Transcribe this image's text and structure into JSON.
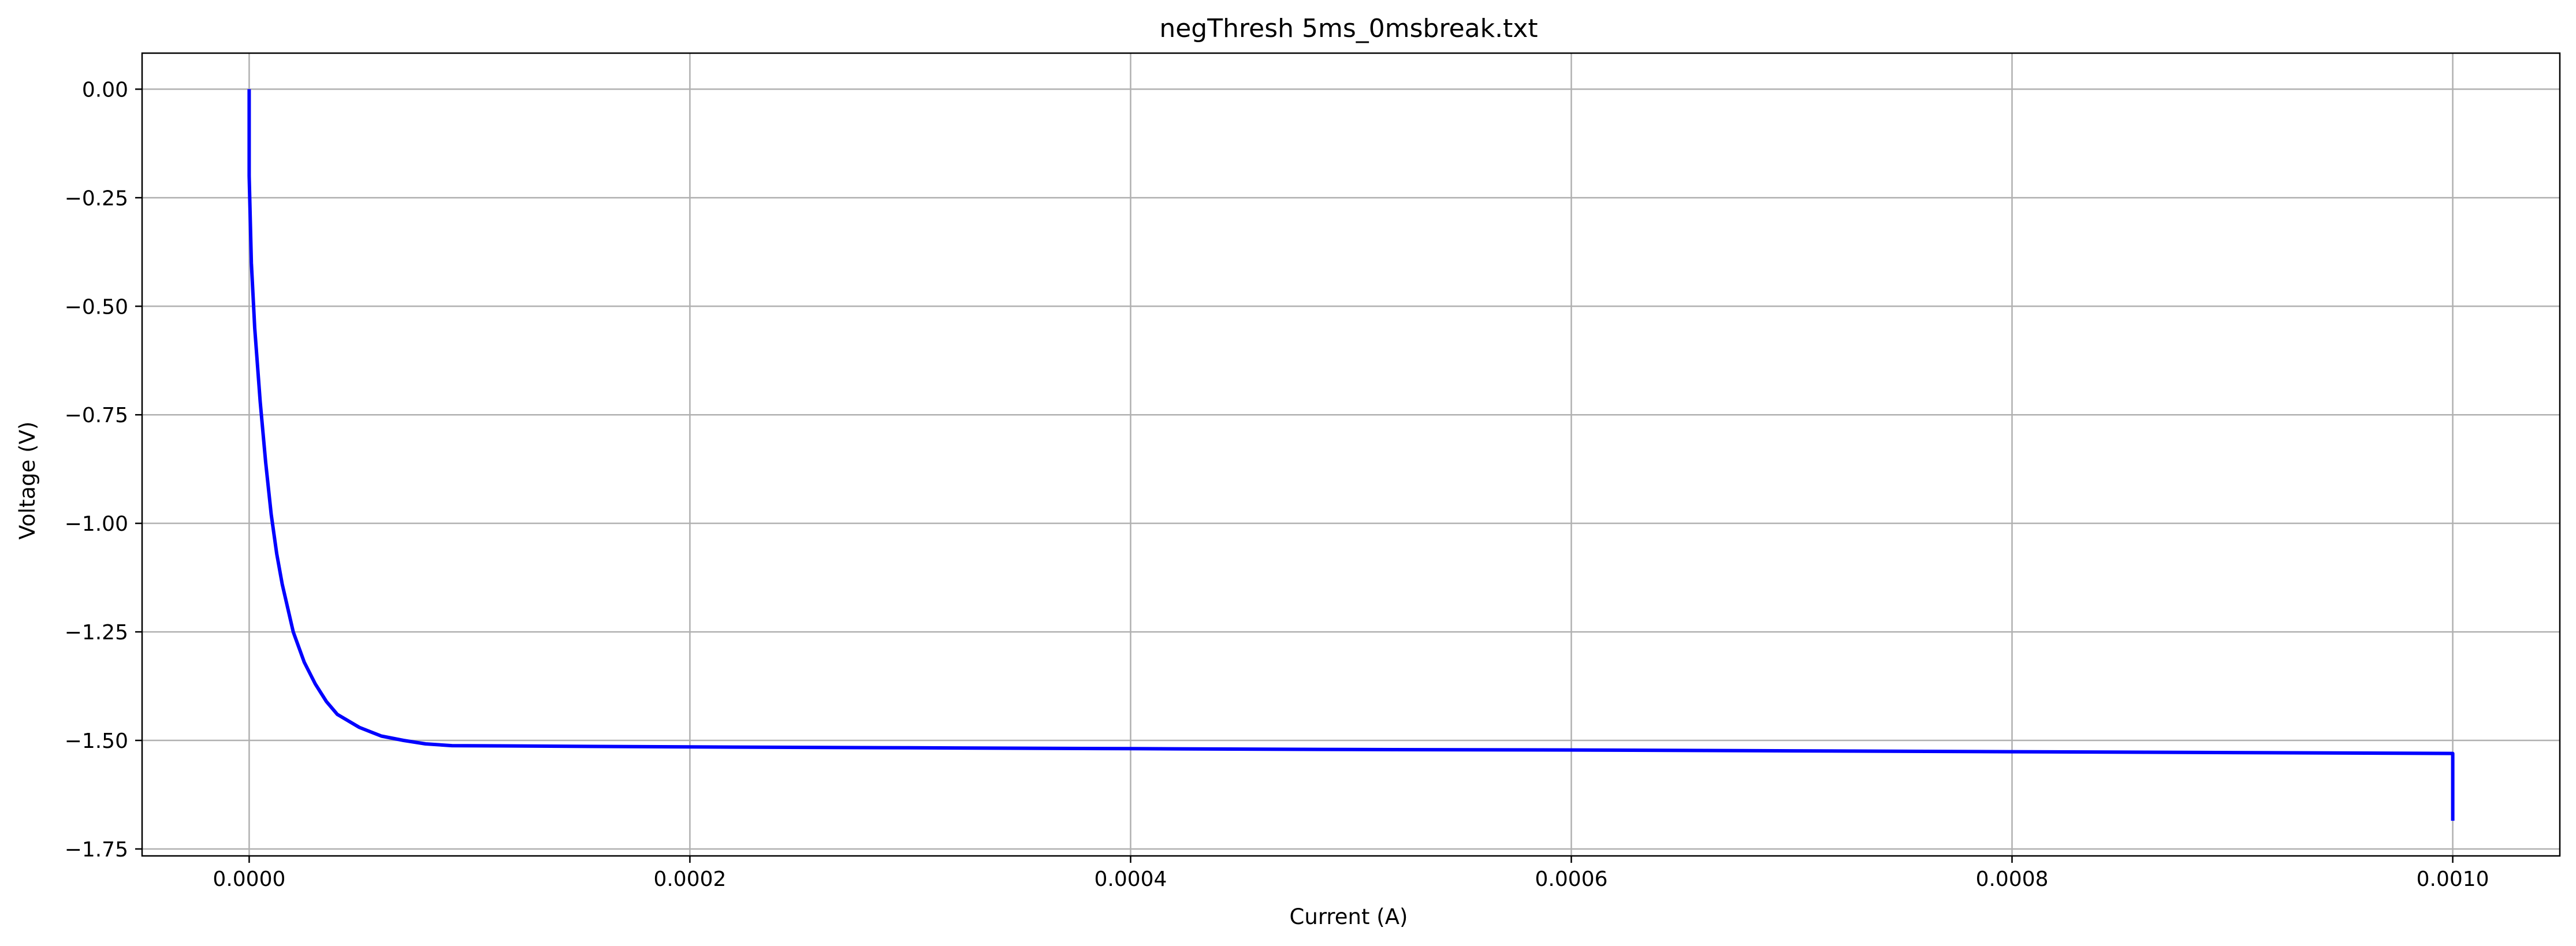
{
  "chart_data": {
    "type": "line",
    "title": "negThresh 5ms_0msbreak.txt",
    "xlabel": "Current (A)",
    "ylabel": "Voltage (V)",
    "xlim": [
      -4.86e-05,
      0.0010486
    ],
    "ylim": [
      -1.766,
      0.083
    ],
    "grid": true,
    "x_ticks": [
      0.0,
      0.0002,
      0.0004,
      0.0006,
      0.0008,
      0.001
    ],
    "x_tick_labels": [
      "0.0000",
      "0.0002",
      "0.0004",
      "0.0006",
      "0.0008",
      "0.0010"
    ],
    "y_ticks": [
      0.0,
      -0.25,
      -0.5,
      -0.75,
      -1.0,
      -1.25,
      -1.5,
      -1.75
    ],
    "y_tick_labels": [
      "0.00",
      "−0.25",
      "−0.50",
      "−0.75",
      "−1.00",
      "−1.25",
      "−1.50",
      "−1.75"
    ],
    "series": [
      {
        "color": "#0000ff",
        "x": [
          0.0,
          0.0,
          1e-06,
          2.5e-06,
          5e-06,
          7.5e-06,
          1e-05,
          1.25e-05,
          1.5e-05,
          2e-05,
          2.5e-05,
          3e-05,
          3.5e-05,
          4e-05,
          5e-05,
          6e-05,
          7e-05,
          8e-05,
          9.2e-05,
          0.0002,
          0.0003,
          0.0004,
          0.0005,
          0.0006,
          0.0007,
          0.0008,
          0.0009,
          0.001,
          0.001
        ],
        "y": [
          0.0,
          -0.2,
          -0.4,
          -0.55,
          -0.72,
          -0.86,
          -0.98,
          -1.07,
          -1.14,
          -1.25,
          -1.32,
          -1.37,
          -1.41,
          -1.44,
          -1.47,
          -1.49,
          -1.5,
          -1.508,
          -1.512,
          -1.515,
          -1.517,
          -1.519,
          -1.521,
          -1.522,
          -1.524,
          -1.526,
          -1.528,
          -1.53,
          -1.685
        ]
      }
    ]
  }
}
